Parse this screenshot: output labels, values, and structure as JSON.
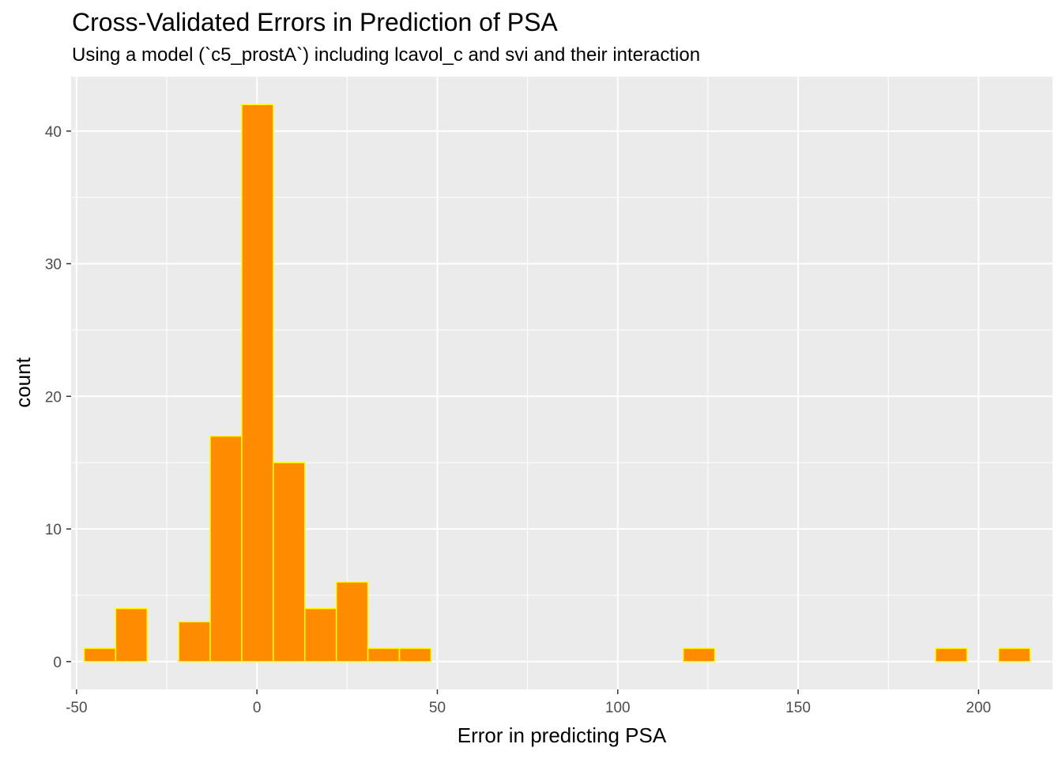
{
  "chart_data": {
    "type": "bar",
    "title": "Cross-Validated Errors in Prediction of PSA",
    "subtitle": "Using a model (`c5_prostA`) including lcavol_c and svi and their interaction",
    "xlabel": "Error in predicting PSA",
    "ylabel": "count",
    "xlim": [
      -51.5,
      220.5
    ],
    "ylim": [
      -2.1,
      44.1
    ],
    "x_ticks": [
      -50,
      0,
      50,
      100,
      150,
      200
    ],
    "y_ticks": [
      0,
      10,
      20,
      30,
      40
    ],
    "bin_width": 8.74,
    "bin_start": -47.9,
    "counts": [
      1,
      4,
      0,
      3,
      17,
      42,
      15,
      4,
      6,
      1,
      1,
      0,
      0,
      0,
      0,
      0,
      0,
      0,
      0,
      1,
      0,
      0,
      0,
      0,
      0,
      0,
      0,
      1,
      0,
      1
    ],
    "grid": true,
    "legend": "none",
    "colors": {
      "fill": "#ff8c00",
      "outline": "#ffff00",
      "panel": "#ebebeb",
      "grid": "#ffffff"
    }
  }
}
